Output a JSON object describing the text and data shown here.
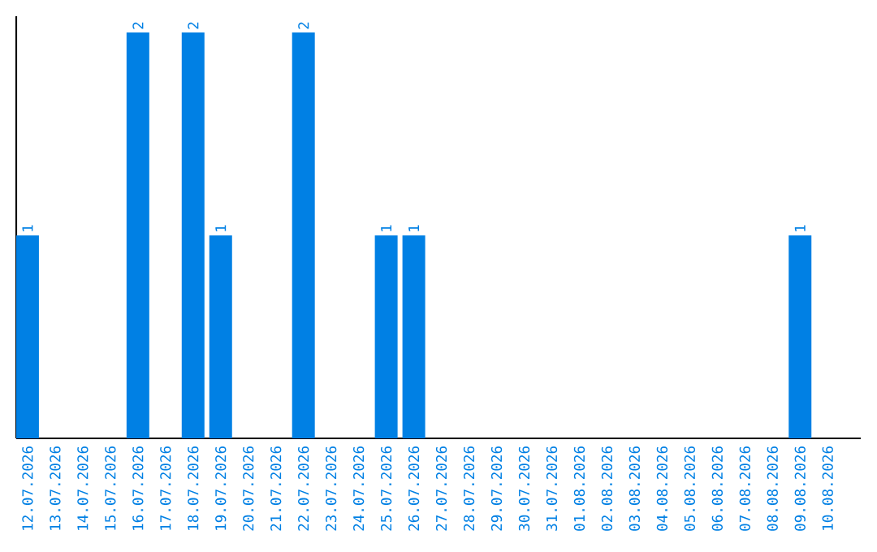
{
  "chart_data": {
    "type": "bar",
    "categories": [
      "12.07.2026",
      "13.07.2026",
      "14.07.2026",
      "15.07.2026",
      "16.07.2026",
      "17.07.2026",
      "18.07.2026",
      "19.07.2026",
      "20.07.2026",
      "21.07.2026",
      "22.07.2026",
      "23.07.2026",
      "24.07.2026",
      "25.07.2026",
      "26.07.2026",
      "27.07.2026",
      "28.07.2026",
      "29.07.2026",
      "30.07.2026",
      "31.07.2026",
      "01.08.2026",
      "02.08.2026",
      "03.08.2026",
      "04.08.2026",
      "05.08.2026",
      "06.08.2026",
      "07.08.2026",
      "08.08.2026",
      "09.08.2026",
      "10.08.2026"
    ],
    "values": [
      1,
      0,
      0,
      0,
      2,
      0,
      2,
      1,
      0,
      0,
      2,
      0,
      0,
      1,
      1,
      0,
      0,
      0,
      0,
      0,
      0,
      0,
      0,
      0,
      0,
      0,
      0,
      0,
      1,
      0
    ],
    "value_labels": [
      "1",
      null,
      null,
      null,
      "2",
      null,
      "2",
      "1",
      null,
      null,
      "2",
      null,
      null,
      "1",
      "1",
      null,
      null,
      null,
      null,
      null,
      null,
      null,
      null,
      null,
      null,
      null,
      null,
      null,
      "1",
      null
    ],
    "color": "#0080e4",
    "tick_labels": "x"
  }
}
